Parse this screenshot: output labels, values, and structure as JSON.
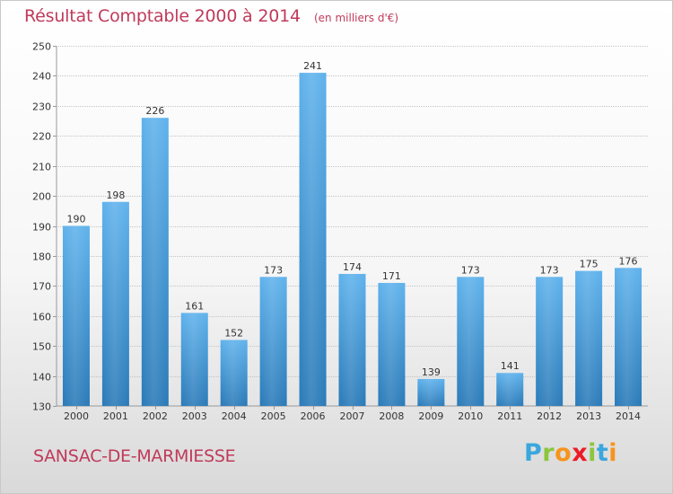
{
  "title": "Résultat Comptable 2000 à 2014",
  "subtitle": "(en milliers d'€)",
  "commune": "SANSAC-DE-MARMIESSE",
  "logo": "Proxiti",
  "colors": {
    "title": "#c03a5a",
    "bar_top": "#5fb2ec",
    "bar_bottom": "#2a7ab8"
  },
  "chart_data": {
    "type": "bar",
    "categories": [
      "2000",
      "2001",
      "2002",
      "2003",
      "2004",
      "2005",
      "2006",
      "2007",
      "2008",
      "2009",
      "2010",
      "2011",
      "2012",
      "2013",
      "2014"
    ],
    "values": [
      190,
      198,
      226,
      161,
      152,
      173,
      241,
      174,
      171,
      139,
      173,
      141,
      173,
      175,
      176
    ],
    "title": "Résultat Comptable 2000 à 2014",
    "xlabel": "",
    "ylabel": "",
    "ylim": [
      130,
      250
    ],
    "yticks": [
      130,
      140,
      150,
      160,
      170,
      180,
      190,
      200,
      210,
      220,
      230,
      240,
      250
    ],
    "grid": true
  }
}
